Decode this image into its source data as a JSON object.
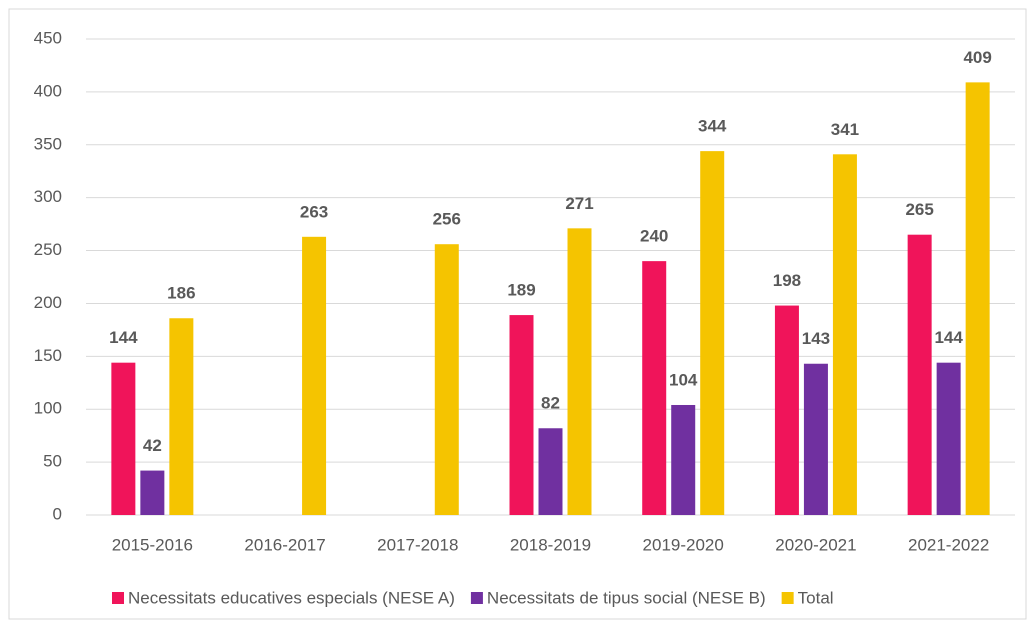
{
  "chart_data": {
    "type": "bar",
    "categories": [
      "2015-2016",
      "2016-2017",
      "2017-2018",
      "2018-2019",
      "2019-2020",
      "2020-2021",
      "2021-2022"
    ],
    "series": [
      {
        "name": "Necessitats educatives especials (NESE A)",
        "color": "#f0145a",
        "values": [
          144,
          null,
          null,
          189,
          240,
          198,
          265
        ]
      },
      {
        "name": "Necessitats de tipus social (NESE B)",
        "color": "#7030a0",
        "values": [
          42,
          null,
          null,
          82,
          104,
          143,
          144
        ]
      },
      {
        "name": "Total",
        "color": "#f5c400",
        "values": [
          186,
          263,
          256,
          271,
          344,
          341,
          409
        ]
      }
    ],
    "ylim": [
      0,
      450
    ],
    "yticks": [
      0,
      50,
      100,
      150,
      200,
      250,
      300,
      350,
      400,
      450
    ],
    "grid": true,
    "legend": "bottom"
  }
}
